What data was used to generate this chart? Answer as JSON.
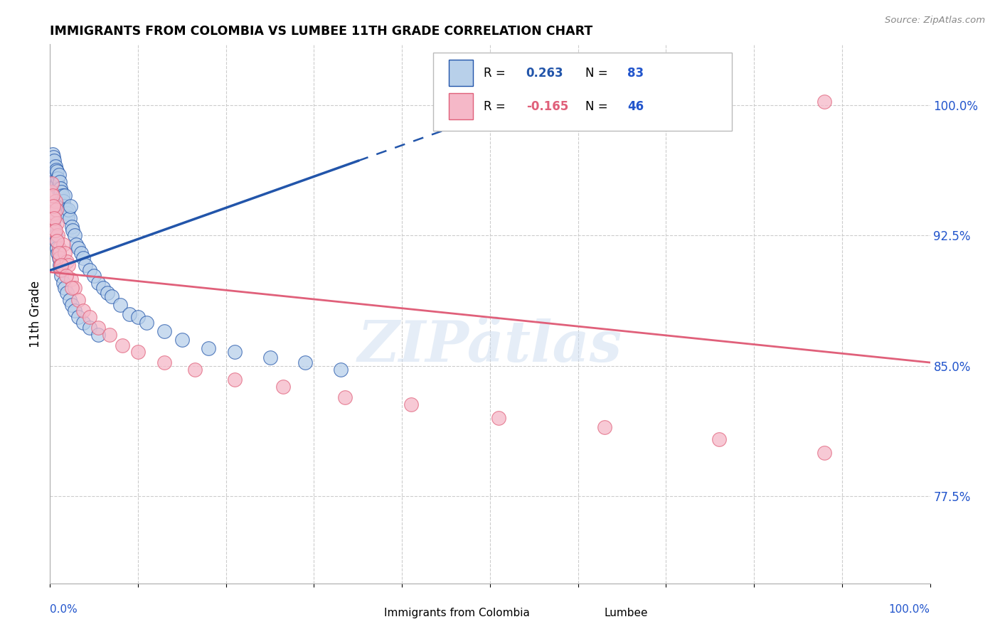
{
  "title": "IMMIGRANTS FROM COLOMBIA VS LUMBEE 11TH GRADE CORRELATION CHART",
  "source": "Source: ZipAtlas.com",
  "ylabel": "11th Grade",
  "ytick_labels": [
    "77.5%",
    "85.0%",
    "92.5%",
    "100.0%"
  ],
  "ytick_values": [
    0.775,
    0.85,
    0.925,
    1.0
  ],
  "xlim": [
    0.0,
    1.0
  ],
  "ylim": [
    0.725,
    1.035
  ],
  "legend1_r": "0.263",
  "legend1_n": "83",
  "legend2_r": "-0.165",
  "legend2_n": "46",
  "colombia_color": "#b8d0ea",
  "lumbee_color": "#f5b8c8",
  "regression_colombia_color": "#2255aa",
  "regression_lumbee_color": "#e0607a",
  "watermark": "ZIPätlas",
  "colombia_points_x": [
    0.001,
    0.002,
    0.003,
    0.003,
    0.004,
    0.004,
    0.005,
    0.005,
    0.006,
    0.006,
    0.007,
    0.007,
    0.008,
    0.008,
    0.009,
    0.009,
    0.01,
    0.01,
    0.011,
    0.011,
    0.012,
    0.012,
    0.013,
    0.013,
    0.014,
    0.015,
    0.016,
    0.017,
    0.018,
    0.019,
    0.02,
    0.021,
    0.022,
    0.023,
    0.025,
    0.026,
    0.028,
    0.03,
    0.032,
    0.035,
    0.038,
    0.04,
    0.045,
    0.05,
    0.055,
    0.06,
    0.065,
    0.07,
    0.08,
    0.09,
    0.1,
    0.11,
    0.13,
    0.15,
    0.18,
    0.21,
    0.25,
    0.29,
    0.33,
    0.001,
    0.002,
    0.003,
    0.004,
    0.005,
    0.006,
    0.007,
    0.008,
    0.009,
    0.01,
    0.011,
    0.012,
    0.013,
    0.015,
    0.017,
    0.019,
    0.022,
    0.025,
    0.028,
    0.032,
    0.038,
    0.045,
    0.055
  ],
  "colombia_points_y": [
    0.96,
    0.968,
    0.972,
    0.965,
    0.97,
    0.96,
    0.968,
    0.962,
    0.965,
    0.96,
    0.963,
    0.958,
    0.962,
    0.955,
    0.958,
    0.952,
    0.96,
    0.952,
    0.956,
    0.948,
    0.952,
    0.945,
    0.95,
    0.943,
    0.948,
    0.945,
    0.942,
    0.948,
    0.94,
    0.938,
    0.936,
    0.94,
    0.935,
    0.942,
    0.93,
    0.928,
    0.925,
    0.92,
    0.918,
    0.915,
    0.912,
    0.908,
    0.905,
    0.902,
    0.898,
    0.895,
    0.892,
    0.89,
    0.885,
    0.88,
    0.878,
    0.875,
    0.87,
    0.865,
    0.86,
    0.858,
    0.855,
    0.852,
    0.848,
    0.94,
    0.938,
    0.935,
    0.932,
    0.928,
    0.925,
    0.922,
    0.918,
    0.915,
    0.912,
    0.908,
    0.905,
    0.902,
    0.898,
    0.895,
    0.892,
    0.888,
    0.885,
    0.882,
    0.878,
    0.875,
    0.872,
    0.868
  ],
  "lumbee_points_x": [
    0.001,
    0.002,
    0.003,
    0.004,
    0.005,
    0.006,
    0.007,
    0.008,
    0.009,
    0.01,
    0.011,
    0.012,
    0.013,
    0.015,
    0.017,
    0.019,
    0.021,
    0.024,
    0.028,
    0.032,
    0.038,
    0.045,
    0.055,
    0.068,
    0.082,
    0.1,
    0.13,
    0.165,
    0.21,
    0.265,
    0.335,
    0.41,
    0.51,
    0.63,
    0.76,
    0.88,
    0.002,
    0.003,
    0.004,
    0.005,
    0.006,
    0.008,
    0.01,
    0.013,
    0.018,
    0.025
  ],
  "lumbee_points_y": [
    0.95,
    0.942,
    0.935,
    0.928,
    0.938,
    0.945,
    0.94,
    0.932,
    0.925,
    0.918,
    0.912,
    0.908,
    0.905,
    0.92,
    0.915,
    0.91,
    0.908,
    0.9,
    0.895,
    0.888,
    0.882,
    0.878,
    0.872,
    0.868,
    0.862,
    0.858,
    0.852,
    0.848,
    0.842,
    0.838,
    0.832,
    0.828,
    0.82,
    0.815,
    0.808,
    0.8,
    0.955,
    0.948,
    0.942,
    0.935,
    0.928,
    0.922,
    0.915,
    0.908,
    0.902,
    0.895
  ],
  "lumbee_outlier_x": [
    0.88
  ],
  "lumbee_outlier_y": [
    1.002
  ],
  "colombia_outlier_x": [
    0.33
  ],
  "colombia_outlier_y": [
    0.848
  ]
}
